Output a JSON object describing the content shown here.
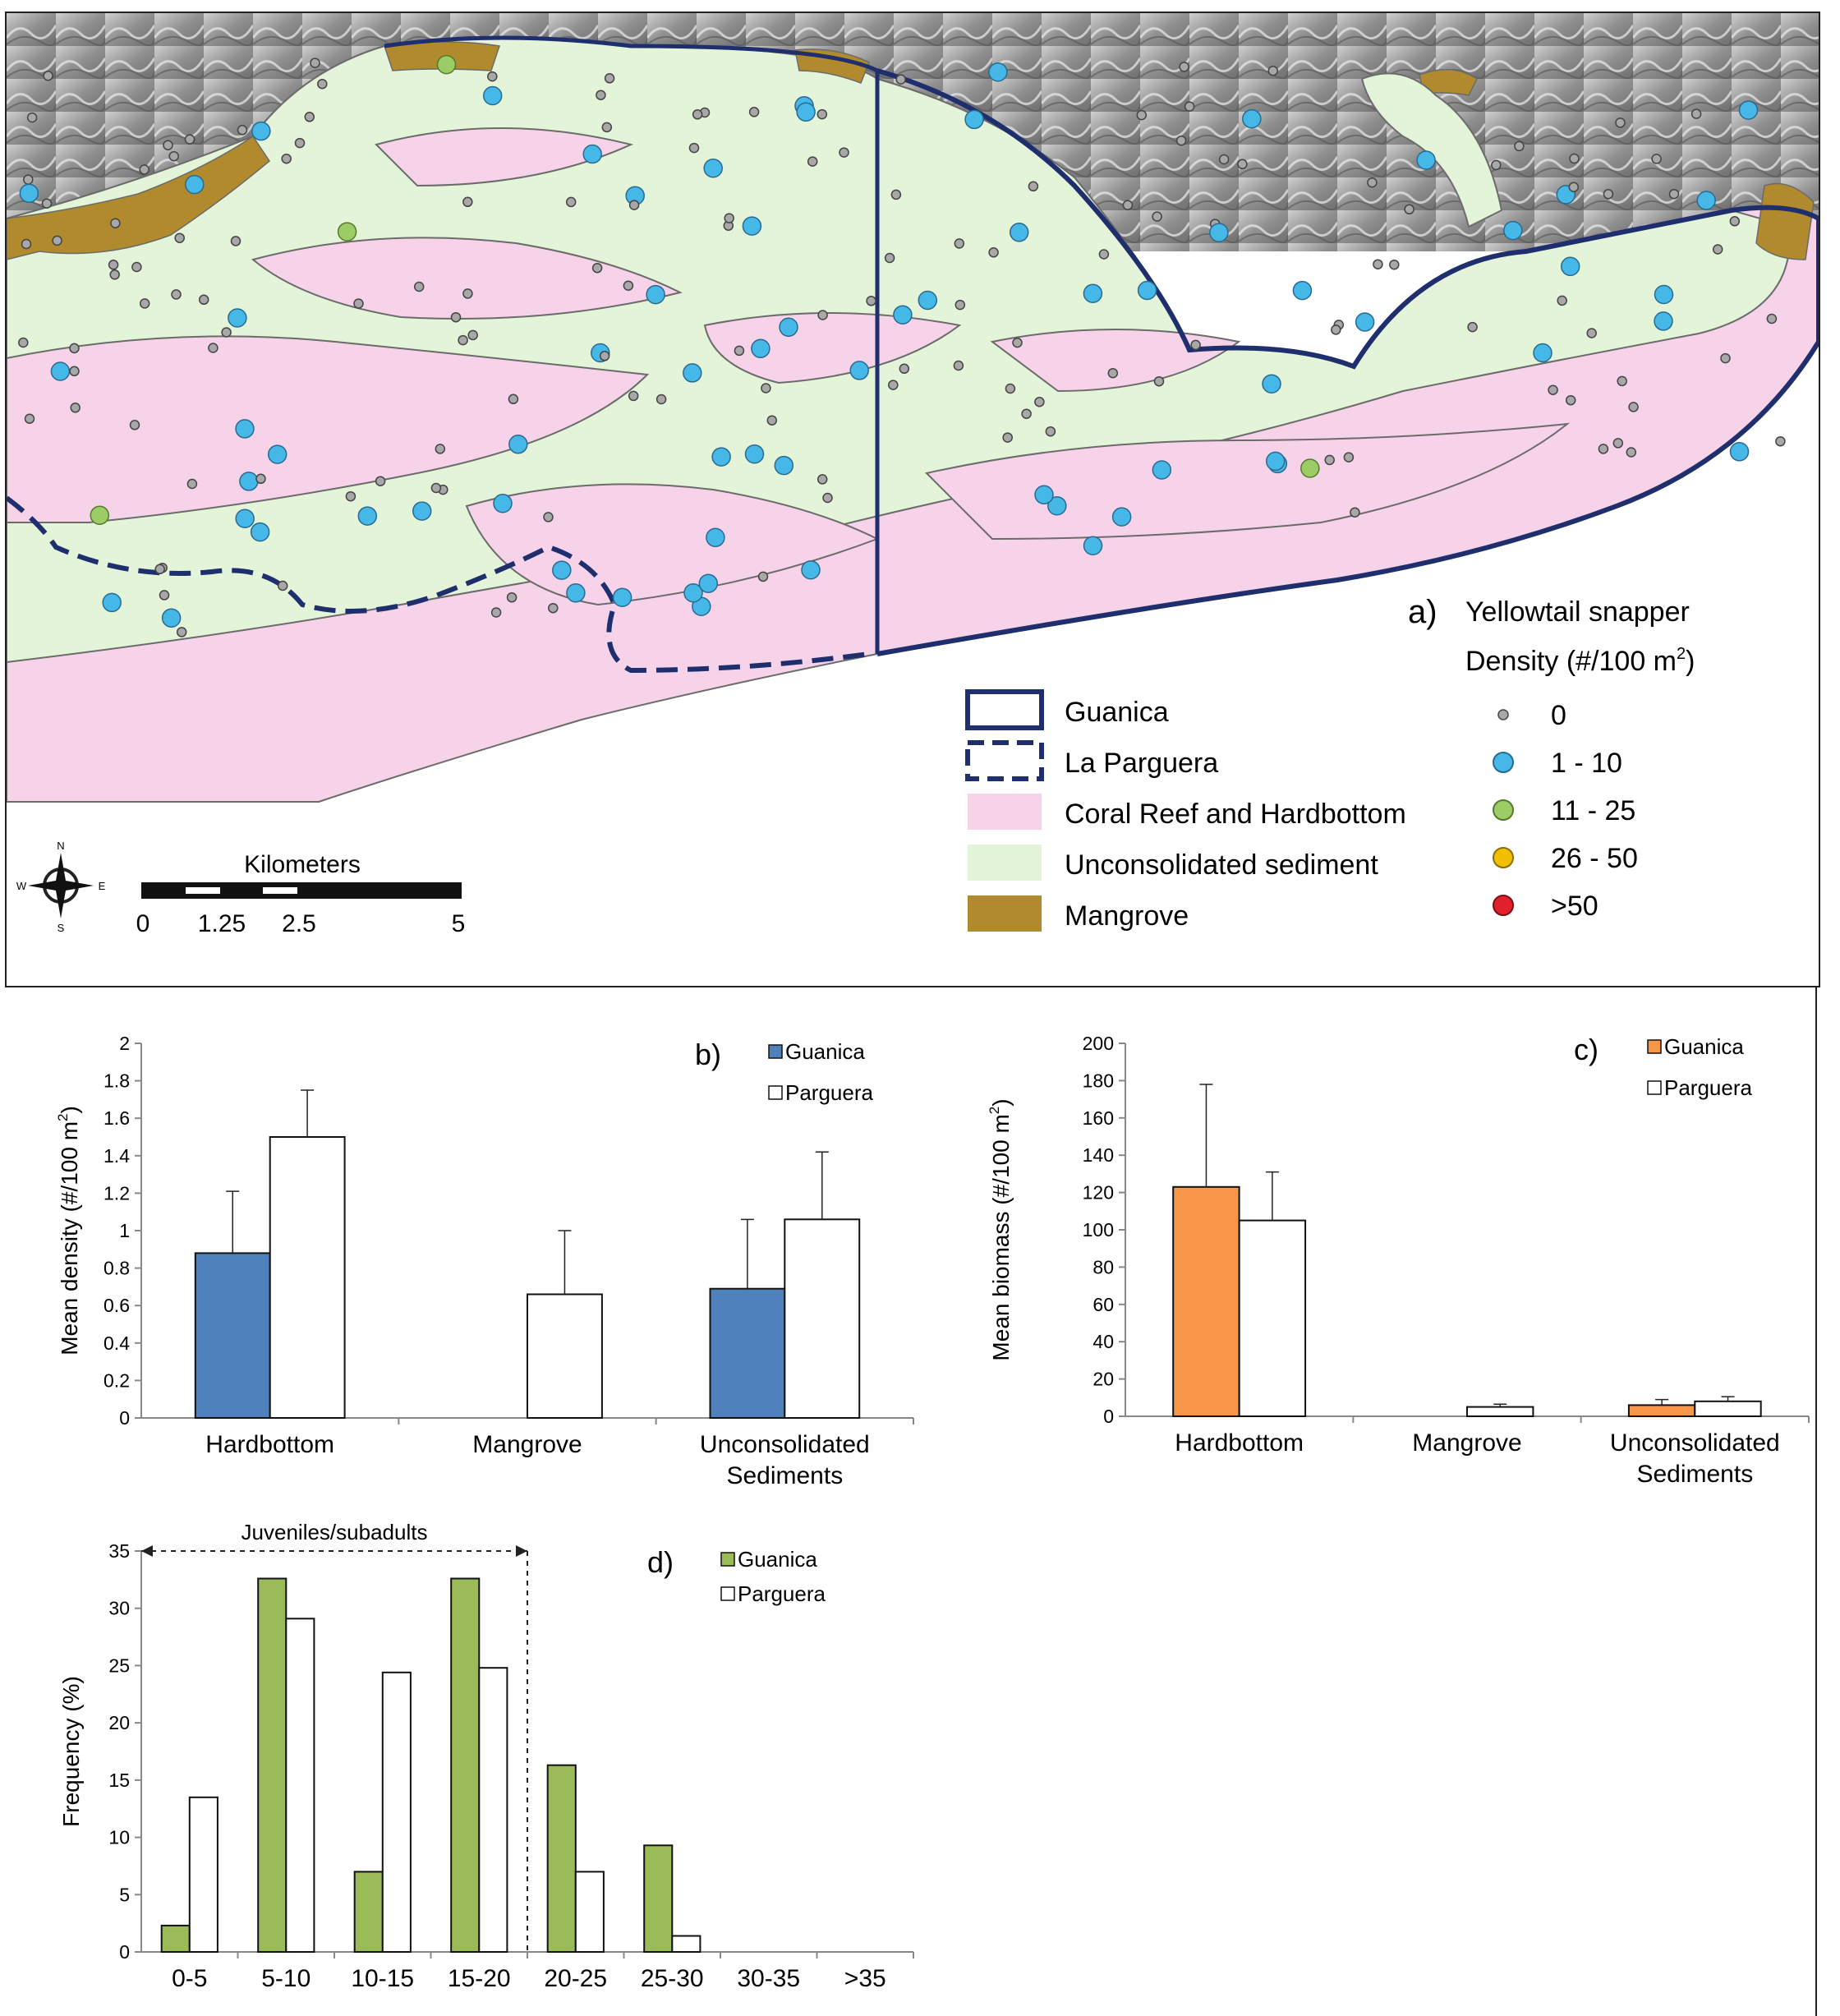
{
  "map": {
    "panel_letter": "a)",
    "title": "Yellowtail snapper",
    "density_label": "Density (#/100 m",
    "density_label_sup": "2",
    "density_label_end": ")",
    "density_classes": [
      {
        "label": "0",
        "color": "#a8a8a8"
      },
      {
        "label": "1 - 10",
        "color": "#45b8e8"
      },
      {
        "label": "11 - 25",
        "color": "#9ccc65"
      },
      {
        "label": "26 - 50",
        "color": "#f2c000"
      },
      {
        "label": ">50",
        "color": "#e0202a"
      }
    ],
    "legend": [
      {
        "label": "Guanica",
        "kind": "solid-boundary"
      },
      {
        "label": "La Parguera",
        "kind": "dashed-boundary"
      },
      {
        "label": "Coral Reef and Hardbottom",
        "kind": "fill",
        "color": "#f7d3ea"
      },
      {
        "label": "Unconsolidated sediment",
        "kind": "fill",
        "color": "#e4f4d8"
      },
      {
        "label": "Mangrove",
        "kind": "fill",
        "color": "#b08a2c"
      }
    ],
    "boundary_color": "#1f2f6e",
    "scale": {
      "title": "Kilometers",
      "ticks": [
        "0",
        "1.25",
        "2.5",
        "5"
      ]
    },
    "compass": {
      "n": "N",
      "s": "S",
      "e": "E",
      "w": "W"
    }
  },
  "chart_data": [
    {
      "panel": "b)",
      "type": "bar",
      "categories": [
        "Hardbottom",
        "Mangrove",
        "Unconsolidated\nSediments"
      ],
      "series": [
        {
          "name": "Guanica",
          "color": "#4f81bd",
          "values": [
            0.88,
            null,
            0.69
          ],
          "errors": [
            0.33,
            null,
            0.37
          ]
        },
        {
          "name": "Parguera",
          "color": "#ffffff",
          "values": [
            1.5,
            0.66,
            1.06
          ],
          "errors": [
            0.25,
            0.34,
            0.36
          ]
        }
      ],
      "ylabel": "Mean density (#/100 m",
      "ylabel_sup": "2",
      "ylabel_end": ")",
      "ylim": [
        0,
        2
      ],
      "yticks": [
        "0",
        "0.2",
        "0.4",
        "0.6",
        "0.8",
        "1",
        "1.2",
        "1.4",
        "1.6",
        "1.8",
        "2"
      ]
    },
    {
      "panel": "c)",
      "type": "bar",
      "categories": [
        "Hardbottom",
        "Mangrove",
        "Unconsolidated\nSediments"
      ],
      "series": [
        {
          "name": "Guanica",
          "color": "#f79646",
          "values": [
            123,
            null,
            6
          ],
          "errors": [
            55,
            null,
            3
          ]
        },
        {
          "name": "Parguera",
          "color": "#ffffff",
          "values": [
            105,
            5,
            8
          ],
          "errors": [
            26,
            1.5,
            2.5
          ]
        }
      ],
      "ylabel": "Mean biomass (#/100 m",
      "ylabel_sup": "2",
      "ylabel_end": ")",
      "ylim": [
        0,
        200
      ],
      "yticks": [
        "0",
        "20",
        "40",
        "60",
        "80",
        "100",
        "120",
        "140",
        "160",
        "180",
        "200"
      ]
    },
    {
      "panel": "d)",
      "type": "bar",
      "categories": [
        "0-5",
        "5-10",
        "10-15",
        "15-20",
        "20-25",
        "25-30",
        "30-35",
        ">35"
      ],
      "series": [
        {
          "name": "Guanica",
          "color": "#9bbb59",
          "values": [
            2.3,
            32.6,
            7,
            32.6,
            16.3,
            9.3,
            0,
            0
          ]
        },
        {
          "name": "Parguera",
          "color": "#ffffff",
          "values": [
            13.5,
            29.1,
            24.4,
            24.8,
            7,
            1.4,
            0,
            0
          ]
        }
      ],
      "ylabel": "Frequency (%)",
      "ylim": [
        0,
        35
      ],
      "yticks": [
        "0",
        "5",
        "10",
        "15",
        "20",
        "25",
        "30",
        "35"
      ],
      "annotation": "Juveniles/subadults"
    }
  ]
}
